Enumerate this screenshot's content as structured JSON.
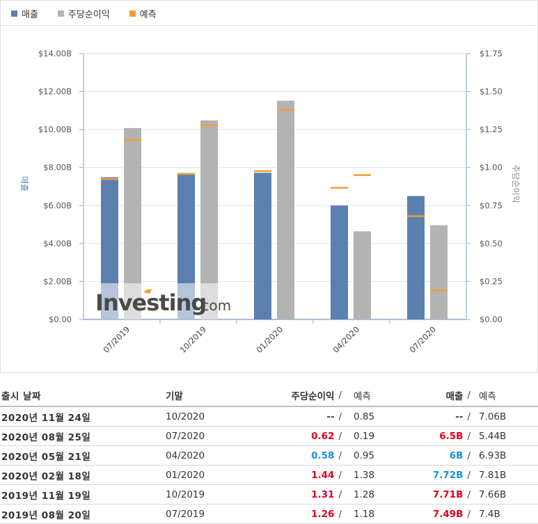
{
  "legend": {
    "revenue": {
      "label": "매출",
      "color": "#5b80af"
    },
    "eps": {
      "label": "주당순이익",
      "color": "#b3b3b3"
    },
    "forecast": {
      "label": "예측",
      "color": "#f0a030"
    }
  },
  "chart_data": {
    "type": "bar",
    "categories": [
      "07/2019",
      "10/2019",
      "01/2020",
      "04/2020",
      "07/2020"
    ],
    "series": [
      {
        "name": "매출",
        "axis": "left",
        "unit": "B",
        "values": [
          7.49,
          7.71,
          7.72,
          6.0,
          6.5
        ],
        "forecast": [
          7.4,
          7.66,
          7.81,
          6.93,
          5.44
        ]
      },
      {
        "name": "주당순이익",
        "axis": "right",
        "values": [
          1.26,
          1.31,
          1.44,
          0.58,
          0.62
        ],
        "forecast": [
          1.18,
          1.28,
          1.38,
          0.95,
          0.19
        ]
      }
    ],
    "y_left": {
      "label": "매출",
      "ylim": [
        0,
        14
      ],
      "ticks": [
        "$0.00",
        "$2.00B",
        "$4.00B",
        "$6.00B",
        "$8.00B",
        "$10.00B",
        "$12.00B",
        "$14.00B"
      ]
    },
    "y_right": {
      "label": "주당순이익",
      "ylim": [
        0,
        1.75
      ],
      "ticks": [
        "$0.00",
        "$0.25",
        "$0.50",
        "$0.75",
        "$1.00",
        "$1.25",
        "$1.50",
        "$1.75"
      ]
    },
    "watermark": {
      "brand": "Investing",
      "suffix": ".com"
    }
  },
  "table": {
    "headers": {
      "date": "출시 날짜",
      "period": "기말",
      "eps": "주당순이익",
      "eps_forecast": "예측",
      "revenue": "매출",
      "revenue_forecast": "예측"
    },
    "rows": [
      {
        "date": "2020년 11월 24일",
        "period": "10/2020",
        "eps": "--",
        "eps_forecast": "0.85",
        "revenue": "--",
        "revenue_forecast": "7.06B",
        "eps_color": "neutral",
        "rev_color": "neutral"
      },
      {
        "date": "2020년 08월 25일",
        "period": "07/2020",
        "eps": "0.62",
        "eps_forecast": "0.19",
        "revenue": "6.5B",
        "revenue_forecast": "5.44B",
        "eps_color": "red",
        "rev_color": "red"
      },
      {
        "date": "2020년 05월 21일",
        "period": "04/2020",
        "eps": "0.58",
        "eps_forecast": "0.95",
        "revenue": "6B",
        "revenue_forecast": "6.93B",
        "eps_color": "blue",
        "rev_color": "blue"
      },
      {
        "date": "2020년 02월 18일",
        "period": "01/2020",
        "eps": "1.44",
        "eps_forecast": "1.38",
        "revenue": "7.72B",
        "revenue_forecast": "7.81B",
        "eps_color": "red",
        "rev_color": "blue"
      },
      {
        "date": "2019년 11월 19일",
        "period": "10/2019",
        "eps": "1.31",
        "eps_forecast": "1.28",
        "revenue": "7.71B",
        "revenue_forecast": "7.66B",
        "eps_color": "red",
        "rev_color": "red"
      },
      {
        "date": "2019년 08월 20일",
        "period": "07/2019",
        "eps": "1.26",
        "eps_forecast": "1.18",
        "revenue": "7.49B",
        "revenue_forecast": "7.4B",
        "eps_color": "red",
        "rev_color": "red"
      }
    ]
  }
}
